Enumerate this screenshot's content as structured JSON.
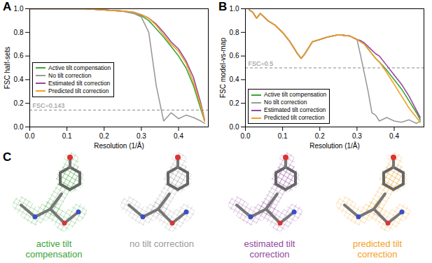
{
  "chart_data": [
    {
      "type": "line",
      "title": "A",
      "x_label": "Resolution (1/Å)",
      "y_label": "FSC half-sets",
      "xlim": [
        0,
        0.48
      ],
      "xticks": [
        {
          "value": 0,
          "label": "0.0"
        },
        0.1,
        0.2,
        0.3,
        0.4
      ],
      "ylim": [
        0,
        1
      ],
      "yticks": [
        {
          "value": 0,
          "label": "0.0"
        },
        0.2,
        0.4,
        0.6,
        0.8,
        {
          "value": 1,
          "label": "1.0"
        }
      ],
      "grid": false,
      "legend": "bottom-left",
      "annotations": [
        {
          "text": "FSC=0.143",
          "y": 0.143
        }
      ],
      "x": [
        0,
        0.05,
        0.1,
        0.15,
        0.2,
        0.25,
        0.28,
        0.3,
        0.32,
        0.34,
        0.36,
        0.38,
        0.4,
        0.42,
        0.44,
        0.46,
        0.47
      ],
      "series": [
        {
          "name": "Active tilt compensation",
          "color": "#3aa535",
          "values": [
            1,
            1,
            1,
            1,
            0.99,
            0.98,
            0.96,
            0.94,
            0.9,
            0.83,
            0.76,
            0.68,
            0.6,
            0.5,
            0.35,
            0.15,
            0.05
          ]
        },
        {
          "name": "No tilt correction",
          "color": "#9a9a9a",
          "values": [
            1,
            1,
            1,
            1,
            0.99,
            0.98,
            0.96,
            0.93,
            0.8,
            0.35,
            0.05,
            0.12,
            0.07,
            0.1,
            0.08,
            0.05,
            0.03
          ]
        },
        {
          "name": "Estimated tilt correction",
          "color": "#93479f",
          "values": [
            1,
            1,
            1,
            1,
            0.99,
            0.98,
            0.97,
            0.95,
            0.92,
            0.87,
            0.8,
            0.72,
            0.66,
            0.56,
            0.42,
            0.2,
            0.06
          ]
        },
        {
          "name": "Predicted tilt correction",
          "color": "#f3a01f",
          "values": [
            1,
            1,
            1,
            1,
            0.99,
            0.98,
            0.97,
            0.95,
            0.92,
            0.86,
            0.78,
            0.7,
            0.64,
            0.54,
            0.38,
            0.18,
            0.05
          ]
        }
      ]
    },
    {
      "type": "line",
      "title": "B",
      "x_label": "Resolution (1/Å)",
      "y_label": "FSC model-vs-map",
      "xlim": [
        0,
        0.48
      ],
      "xticks": [
        {
          "value": 0,
          "label": "0.0"
        },
        0.1,
        0.2,
        0.3,
        0.4
      ],
      "ylim": [
        0,
        1
      ],
      "yticks": [
        {
          "value": 0,
          "label": "0.0"
        },
        0.2,
        0.4,
        0.6,
        0.8,
        {
          "value": 1,
          "label": "1.0"
        }
      ],
      "grid": false,
      "legend": "bottom-left",
      "annotations": [
        {
          "text": "FSC=0.5",
          "y": 0.5
        }
      ],
      "x": [
        0.01,
        0.02,
        0.03,
        0.04,
        0.06,
        0.08,
        0.1,
        0.12,
        0.14,
        0.15,
        0.16,
        0.18,
        0.2,
        0.22,
        0.25,
        0.28,
        0.3,
        0.31,
        0.32,
        0.33,
        0.34,
        0.35,
        0.36,
        0.38,
        0.4,
        0.42,
        0.44,
        0.46,
        0.47
      ],
      "series": [
        {
          "name": "Active tilt compensation",
          "color": "#3aa535",
          "values": [
            0.99,
            0.97,
            0.92,
            0.96,
            0.9,
            0.86,
            0.8,
            0.72,
            0.62,
            0.58,
            0.62,
            0.72,
            0.74,
            0.76,
            0.78,
            0.77,
            0.74,
            0.72,
            0.7,
            0.66,
            0.62,
            0.58,
            0.55,
            0.48,
            0.4,
            0.32,
            0.22,
            0.12,
            0.06
          ]
        },
        {
          "name": "No tilt correction",
          "color": "#9a9a9a",
          "values": [
            0.99,
            0.97,
            0.92,
            0.96,
            0.9,
            0.86,
            0.8,
            0.72,
            0.62,
            0.58,
            0.62,
            0.72,
            0.74,
            0.76,
            0.78,
            0.77,
            0.74,
            0.6,
            0.45,
            0.3,
            0.12,
            0.1,
            0.05,
            0.08,
            0.05,
            0.04,
            0.06,
            0.03,
            0.05
          ]
        },
        {
          "name": "Estimated tilt correction",
          "color": "#93479f",
          "values": [
            0.99,
            0.97,
            0.92,
            0.96,
            0.9,
            0.86,
            0.8,
            0.72,
            0.62,
            0.58,
            0.62,
            0.72,
            0.74,
            0.76,
            0.78,
            0.77,
            0.74,
            0.73,
            0.71,
            0.68,
            0.65,
            0.62,
            0.6,
            0.52,
            0.44,
            0.36,
            0.26,
            0.14,
            0.08
          ]
        },
        {
          "name": "Predicted tilt correction",
          "color": "#f3a01f",
          "values": [
            0.99,
            0.97,
            0.92,
            0.96,
            0.9,
            0.86,
            0.8,
            0.72,
            0.62,
            0.58,
            0.62,
            0.72,
            0.74,
            0.76,
            0.78,
            0.77,
            0.74,
            0.72,
            0.7,
            0.66,
            0.62,
            0.58,
            0.55,
            0.46,
            0.36,
            0.26,
            0.16,
            0.08,
            0.04
          ]
        }
      ]
    },
    {
      "type": "image",
      "title": "C",
      "panels": [
        {
          "label": "active tilt compensation",
          "color": "#3aa535"
        },
        {
          "label": "no tilt correction",
          "color": "#9a9a9a"
        },
        {
          "label": "estimated tilt correction",
          "color": "#93479f"
        },
        {
          "label": "predicted tilt correction",
          "color": "#f3a01f"
        }
      ]
    }
  ]
}
